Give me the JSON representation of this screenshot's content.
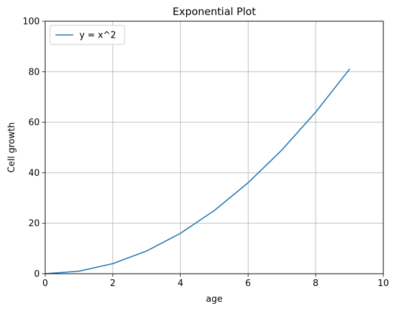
{
  "chart_data": {
    "type": "line",
    "title": "Exponential Plot",
    "xlabel": "age",
    "ylabel": "Cell growth",
    "xlim": [
      0,
      10
    ],
    "ylim": [
      0,
      100
    ],
    "xticks": [
      0,
      2,
      4,
      6,
      8,
      10
    ],
    "yticks": [
      0,
      20,
      40,
      60,
      80,
      100
    ],
    "grid": true,
    "legend_position": "top-left",
    "series": [
      {
        "name": "y = x^2",
        "color": "#1f77b4",
        "x": [
          0,
          1,
          2,
          3,
          4,
          5,
          6,
          7,
          8,
          9
        ],
        "y": [
          0,
          1,
          4,
          9,
          16,
          25,
          36,
          49,
          64,
          81
        ]
      }
    ]
  }
}
